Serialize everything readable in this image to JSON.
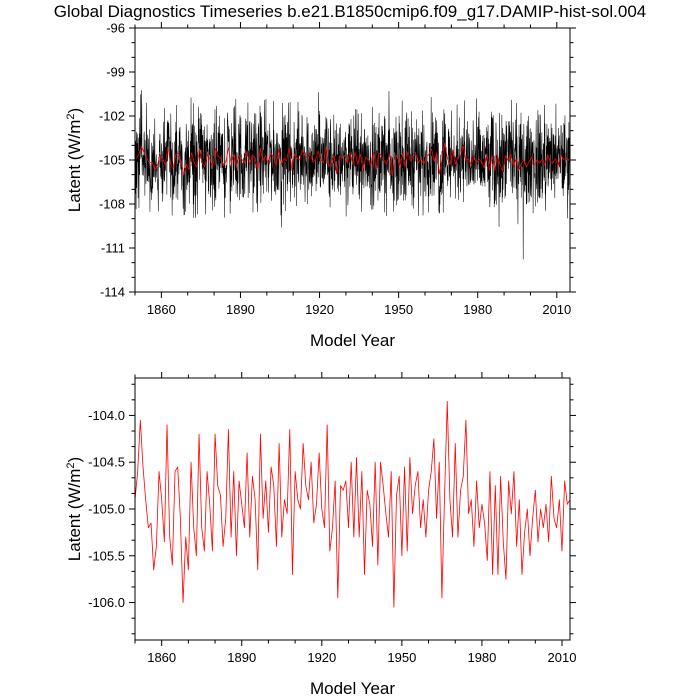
{
  "title": "Global Diagnostics Timeseries b.e21.B1850cmip6.f09_g17.DAMIP-hist-sol.004",
  "colors": {
    "monthly": "#000000",
    "annual": "#ff0000",
    "axes": "#000000"
  },
  "chart_data": [
    {
      "type": "line",
      "xlabel": "Model Year",
      "ylabel": "Latent (W/m",
      "ylabel_sup": "2",
      "ylabel_close": ")",
      "xlim": [
        1850,
        2015
      ],
      "ylim": [
        -114,
        -96
      ],
      "xticks": [
        1860,
        1890,
        1920,
        1950,
        1980,
        2010
      ],
      "yticks": [
        -96,
        -99,
        -102,
        -105,
        -108,
        -111,
        -114
      ],
      "ytick_labels": [
        "-96",
        "-99",
        "-102",
        "-105",
        "-108",
        "-111",
        "-114"
      ],
      "grid": false,
      "series": [
        {
          "color": "#000000",
          "resolution": "monthly",
          "start_year": 1850,
          "points_per_year": 12,
          "mean": -105.0,
          "min": -112.1,
          "max": -98.9
        },
        {
          "color": "#ff0000",
          "resolution": "annual",
          "source": "panel2"
        }
      ]
    },
    {
      "type": "line",
      "xlabel": "Model Year",
      "ylabel": "Latent (W/m",
      "ylabel_sup": "2",
      "ylabel_close": ")",
      "xlim": [
        1850,
        2013
      ],
      "ylim": [
        -106.4,
        -103.6
      ],
      "xticks": [
        1860,
        1890,
        1920,
        1950,
        1980,
        2010
      ],
      "yticks": [
        -104.0,
        -104.5,
        -105.0,
        -105.5,
        -106.0
      ],
      "ytick_labels": [
        "-104.0",
        "-104.5",
        "-105.0",
        "-105.5",
        "-106.0"
      ],
      "grid": false,
      "series": [
        {
          "color": "#ff0000",
          "x_start": 1850,
          "x_step": 1,
          "values": [
            -104.9,
            -104.6,
            -104.05,
            -104.55,
            -104.9,
            -105.2,
            -105.15,
            -105.65,
            -105.4,
            -104.6,
            -104.9,
            -105.35,
            -104.1,
            -105.3,
            -105.6,
            -104.6,
            -104.55,
            -105.1,
            -106.0,
            -105.3,
            -105.65,
            -104.5,
            -105.2,
            -105.5,
            -104.2,
            -105.2,
            -105.45,
            -104.6,
            -104.95,
            -105.45,
            -104.2,
            -104.75,
            -104.85,
            -105.4,
            -105.1,
            -104.15,
            -105.3,
            -104.6,
            -105.5,
            -104.7,
            -104.95,
            -105.2,
            -104.4,
            -105.3,
            -104.65,
            -104.9,
            -105.65,
            -104.2,
            -105.1,
            -104.7,
            -105.25,
            -104.55,
            -104.75,
            -105.4,
            -104.3,
            -105.3,
            -104.9,
            -105.05,
            -104.15,
            -105.7,
            -104.6,
            -104.9,
            -105.0,
            -104.3,
            -104.75,
            -104.9,
            -104.5,
            -105.15,
            -104.95,
            -104.4,
            -105.0,
            -105.2,
            -104.1,
            -105.45,
            -105.2,
            -104.7,
            -105.95,
            -104.75,
            -104.8,
            -104.7,
            -105.2,
            -104.5,
            -105.3,
            -104.45,
            -105.3,
            -104.6,
            -105.7,
            -104.8,
            -104.95,
            -105.4,
            -104.5,
            -105.6,
            -104.5,
            -104.75,
            -105.05,
            -105.3,
            -104.6,
            -106.05,
            -104.85,
            -104.65,
            -105.5,
            -104.55,
            -105.45,
            -104.45,
            -105.05,
            -104.75,
            -104.6,
            -105.2,
            -104.9,
            -105.3,
            -104.8,
            -104.6,
            -104.25,
            -105.1,
            -104.5,
            -105.95,
            -104.85,
            -103.85,
            -104.9,
            -105.3,
            -104.3,
            -105.3,
            -104.8,
            -104.65,
            -104.05,
            -105.05,
            -104.9,
            -105.4,
            -104.7,
            -105.2,
            -104.95,
            -105.15,
            -105.55,
            -104.6,
            -105.7,
            -104.75,
            -105.7,
            -104.65,
            -105.35,
            -105.75,
            -104.7,
            -105.05,
            -104.6,
            -105.4,
            -104.9,
            -105.7,
            -105.25,
            -105.0,
            -105.5,
            -105.1,
            -104.8,
            -105.35,
            -105.0,
            -105.2,
            -104.95,
            -105.35,
            -104.65,
            -105.1,
            -105.2,
            -104.9,
            -105.45,
            -104.7,
            -104.95,
            -104.9,
            -105.0,
            -104.9
          ]
        }
      ]
    }
  ]
}
